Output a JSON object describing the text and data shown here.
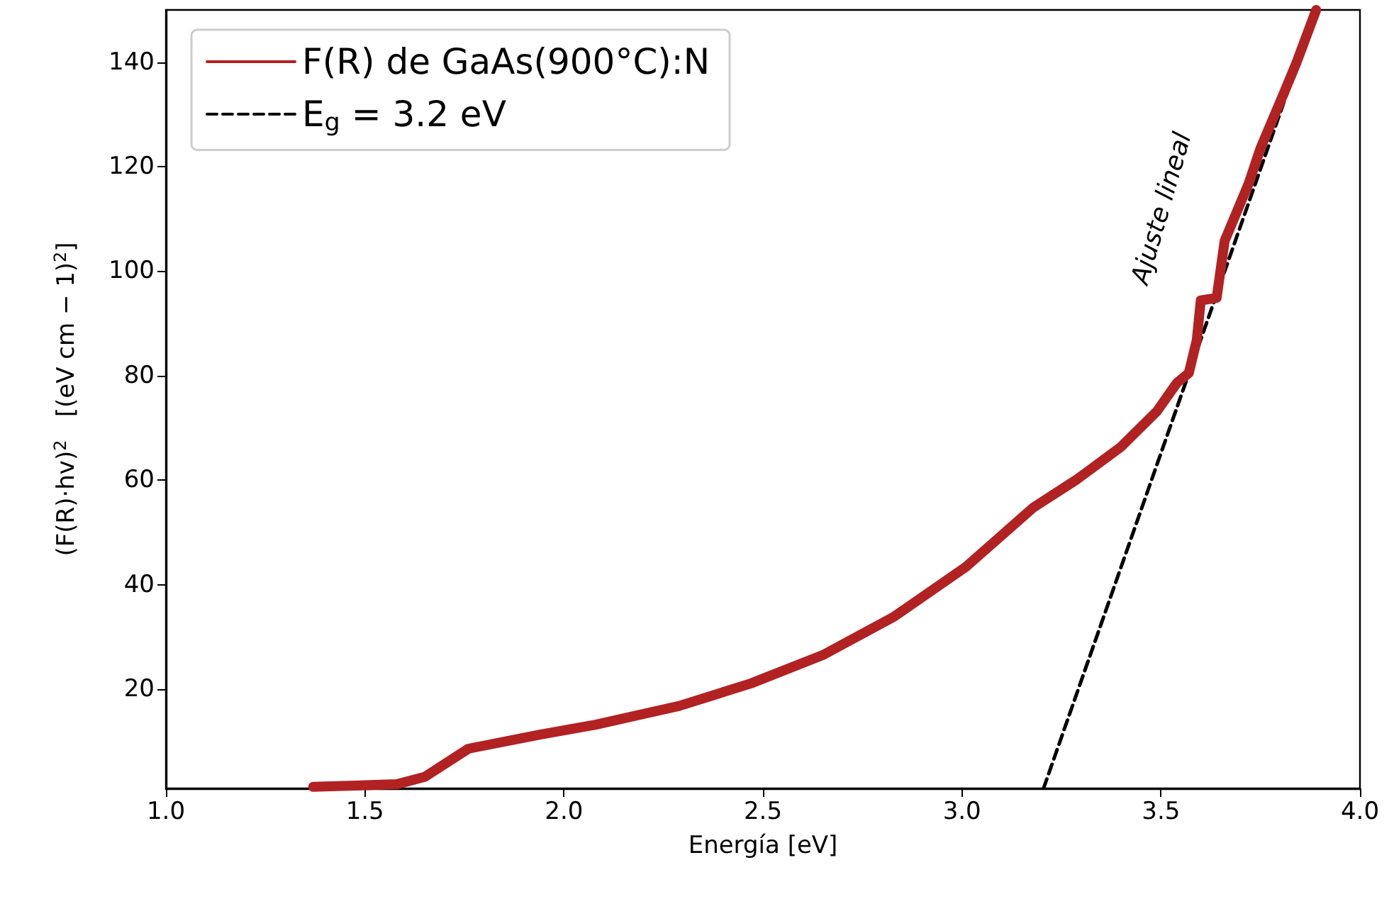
{
  "chart_data": {
    "type": "line",
    "xlabel": "Energía [eV]",
    "ylabel": "(F(R)·hv)$^{2}$   [(eV cm − 1)$^{2}$]",
    "xlim": [
      1.0,
      4.0
    ],
    "xticks": [
      {
        "value": 1.0,
        "label": "1.0"
      },
      {
        "value": 1.5,
        "label": "1.5"
      },
      {
        "value": 2.0,
        "label": "2.0"
      },
      {
        "value": 2.5,
        "label": "2.5"
      },
      {
        "value": 3.0,
        "label": "3.0"
      },
      {
        "value": 3.5,
        "label": "3.5"
      },
      {
        "value": 4.0,
        "label": "4.0"
      }
    ],
    "ylim": [
      1,
      150
    ],
    "yticks": [
      20,
      40,
      60,
      80,
      100,
      120,
      140
    ],
    "grid": false,
    "legend": "top left",
    "marker": "none",
    "series": [
      {
        "name": "F(R) de GaAs(900°C):N",
        "color": "#b22222",
        "line_style": "solid",
        "x": [
          1.37,
          1.58,
          1.65,
          1.76,
          1.94,
          2.08,
          2.29,
          2.47,
          2.65,
          2.83,
          3.01,
          3.18,
          3.29,
          3.4,
          3.49,
          3.54,
          3.57,
          3.59,
          3.6,
          3.64,
          3.66,
          3.72,
          3.75,
          3.81,
          3.84,
          3.89
        ],
        "values": [
          1.3,
          1.8,
          3.2,
          8.6,
          11.3,
          13.2,
          16.8,
          21.1,
          26.5,
          33.9,
          43.4,
          54.8,
          60.2,
          66.4,
          73.2,
          78.6,
          80.5,
          86.8,
          94.4,
          94.9,
          105.8,
          116.7,
          123.5,
          134.3,
          139.8,
          150
        ]
      },
      {
        "name": "E$_{g}$ = 3.2 eV",
        "color": "#000000",
        "line_style": "dashed",
        "x": [
          3.205,
          3.89
        ],
        "values": [
          1,
          150
        ]
      }
    ],
    "annotations": [
      "Ajuste lineal"
    ]
  }
}
